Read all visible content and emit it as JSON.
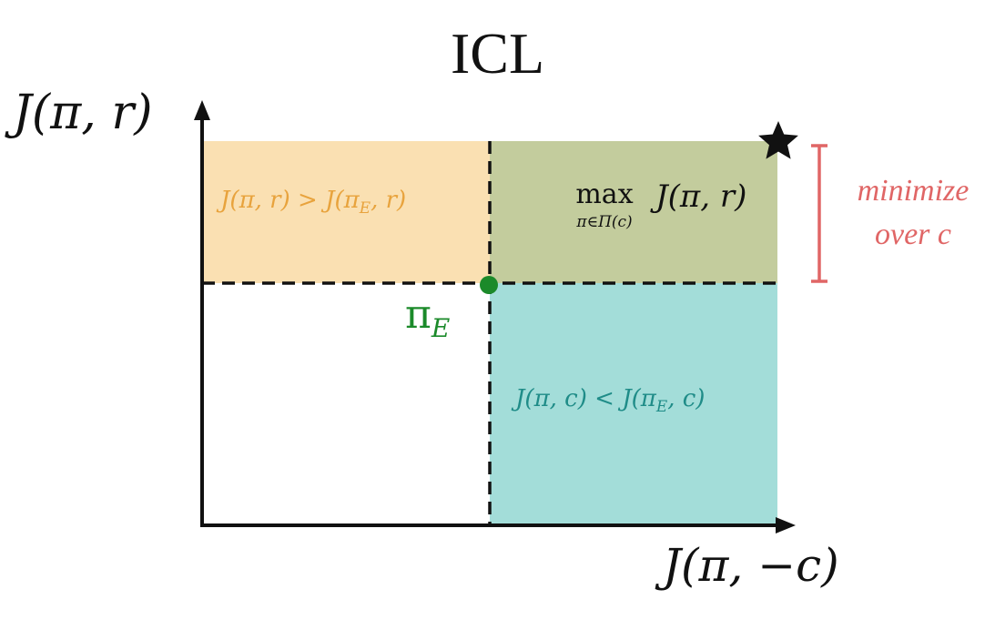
{
  "title": "ICL",
  "axes": {
    "y_label": "J(π, r)",
    "x_label": "J(π, −c)"
  },
  "regions": {
    "top_left": {
      "text": "J(π, r) > J(π_E, r)",
      "color": "#FAE0B2",
      "text_color": "#E8A33D"
    },
    "top_right": {
      "max_word": "max",
      "max_sub": "π∈Π(c)",
      "max_expr": "J(π, r)",
      "color": "#C3CC9D"
    },
    "bottom_right": {
      "text": "J(π, c) < J(π_E, c)",
      "color": "#A3DDD9",
      "text_color": "#1F8C88"
    }
  },
  "point": {
    "symbol": "π",
    "subscript": "E",
    "color": "#1B8A2A"
  },
  "star_icon": "star",
  "side_note": {
    "line1": "minimize",
    "line2": "over c",
    "color": "#E06666"
  }
}
